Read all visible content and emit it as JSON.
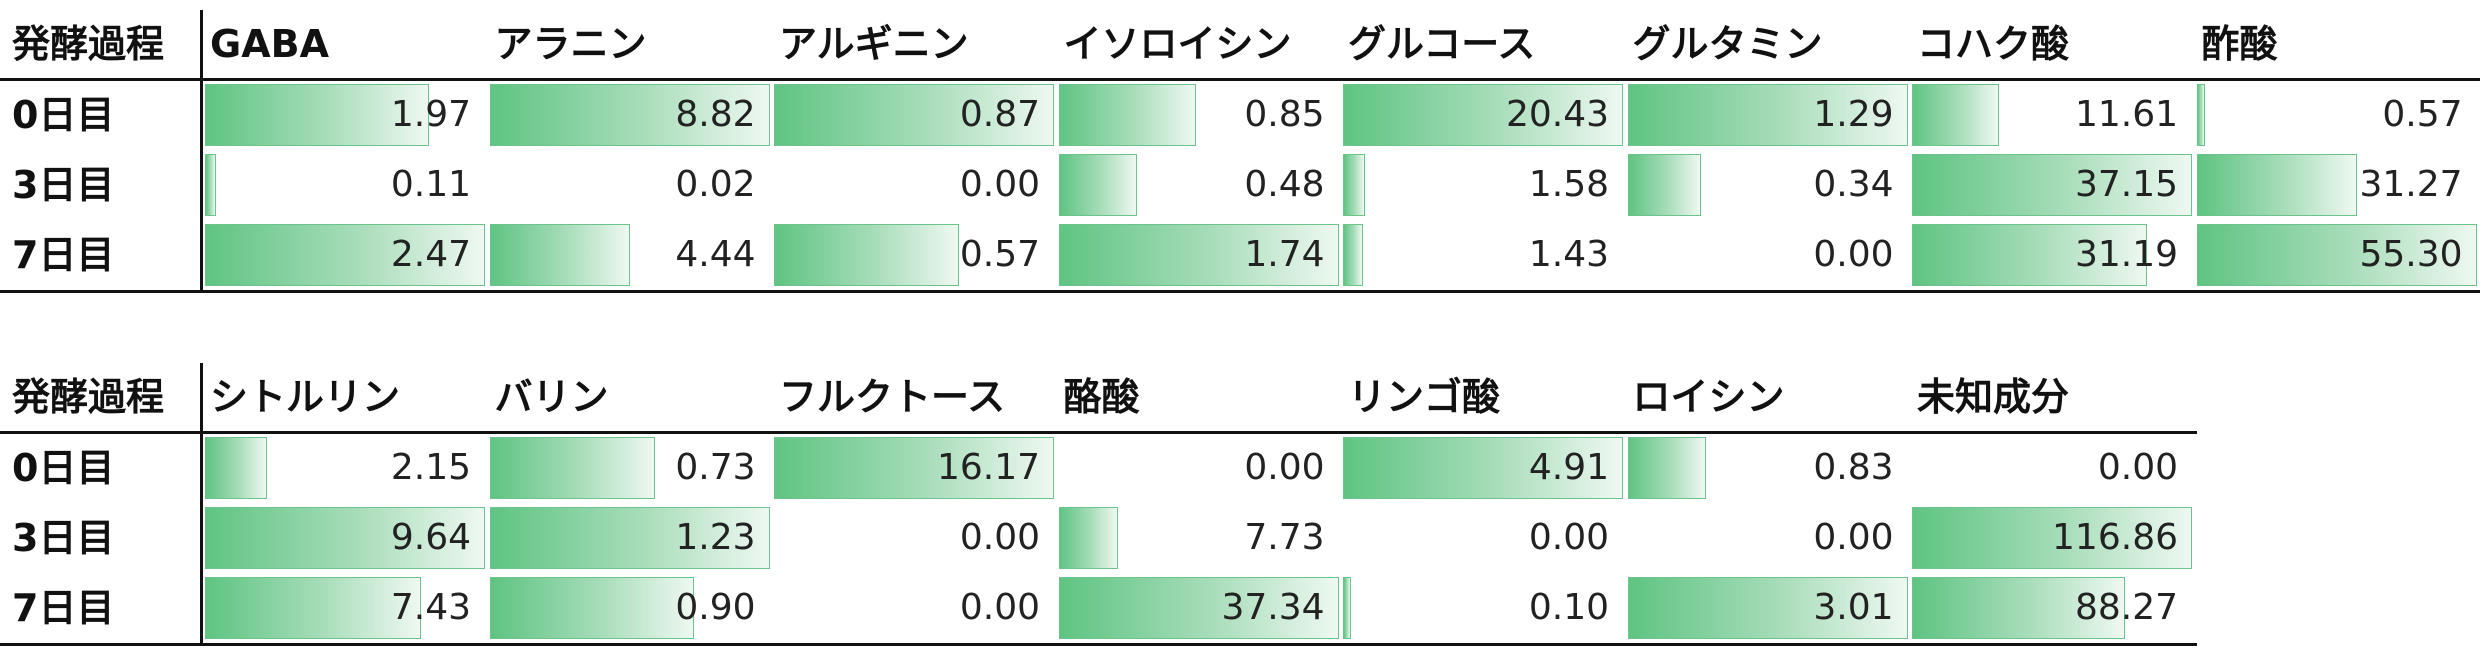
{
  "tables": [
    {
      "stage_header": "発酵過程",
      "columns": [
        "GABA",
        "アラニン",
        "アルギニン",
        "イソロイシン",
        "グルコース",
        "グルタミン",
        "コハク酸",
        "酢酸"
      ],
      "rows": [
        {
          "label": "0日目",
          "values": [
            "1.97",
            "8.82",
            "0.87",
            "0.85",
            "20.43",
            "1.29",
            "11.61",
            "0.57"
          ],
          "fill": [
            0.8,
            1.0,
            1.0,
            0.49,
            1.0,
            1.0,
            0.31,
            0.01
          ]
        },
        {
          "label": "3日目",
          "values": [
            "0.11",
            "0.02",
            "0.00",
            "0.48",
            "1.58",
            "0.34",
            "37.15",
            "31.27"
          ],
          "fill": [
            0.04,
            0.0,
            0.0,
            0.28,
            0.08,
            0.26,
            1.0,
            0.57
          ]
        },
        {
          "label": "7日目",
          "values": [
            "2.47",
            "4.44",
            "0.57",
            "1.74",
            "1.43",
            "0.00",
            "31.19",
            "55.30"
          ],
          "fill": [
            1.0,
            0.5,
            0.66,
            1.0,
            0.07,
            0.0,
            0.84,
            1.0
          ]
        }
      ]
    },
    {
      "stage_header": "発酵過程",
      "columns": [
        "シトルリン",
        "バリン",
        "フルクトース",
        "酪酸",
        "リンゴ酸",
        "ロイシン",
        "未知成分"
      ],
      "rows": [
        {
          "label": "0日目",
          "values": [
            "2.15",
            "0.73",
            "16.17",
            "0.00",
            "4.91",
            "0.83",
            "0.00"
          ],
          "fill": [
            0.22,
            0.59,
            1.0,
            0.0,
            1.0,
            0.28,
            0.0
          ]
        },
        {
          "label": "3日目",
          "values": [
            "9.64",
            "1.23",
            "0.00",
            "7.73",
            "0.00",
            "0.00",
            "116.86"
          ],
          "fill": [
            1.0,
            1.0,
            0.0,
            0.21,
            0.0,
            0.0,
            1.0
          ]
        },
        {
          "label": "7日目",
          "values": [
            "7.43",
            "0.90",
            "0.00",
            "37.34",
            "0.10",
            "3.01",
            "88.27"
          ],
          "fill": [
            0.77,
            0.73,
            0.0,
            1.0,
            0.02,
            1.0,
            0.76
          ]
        }
      ]
    }
  ]
}
